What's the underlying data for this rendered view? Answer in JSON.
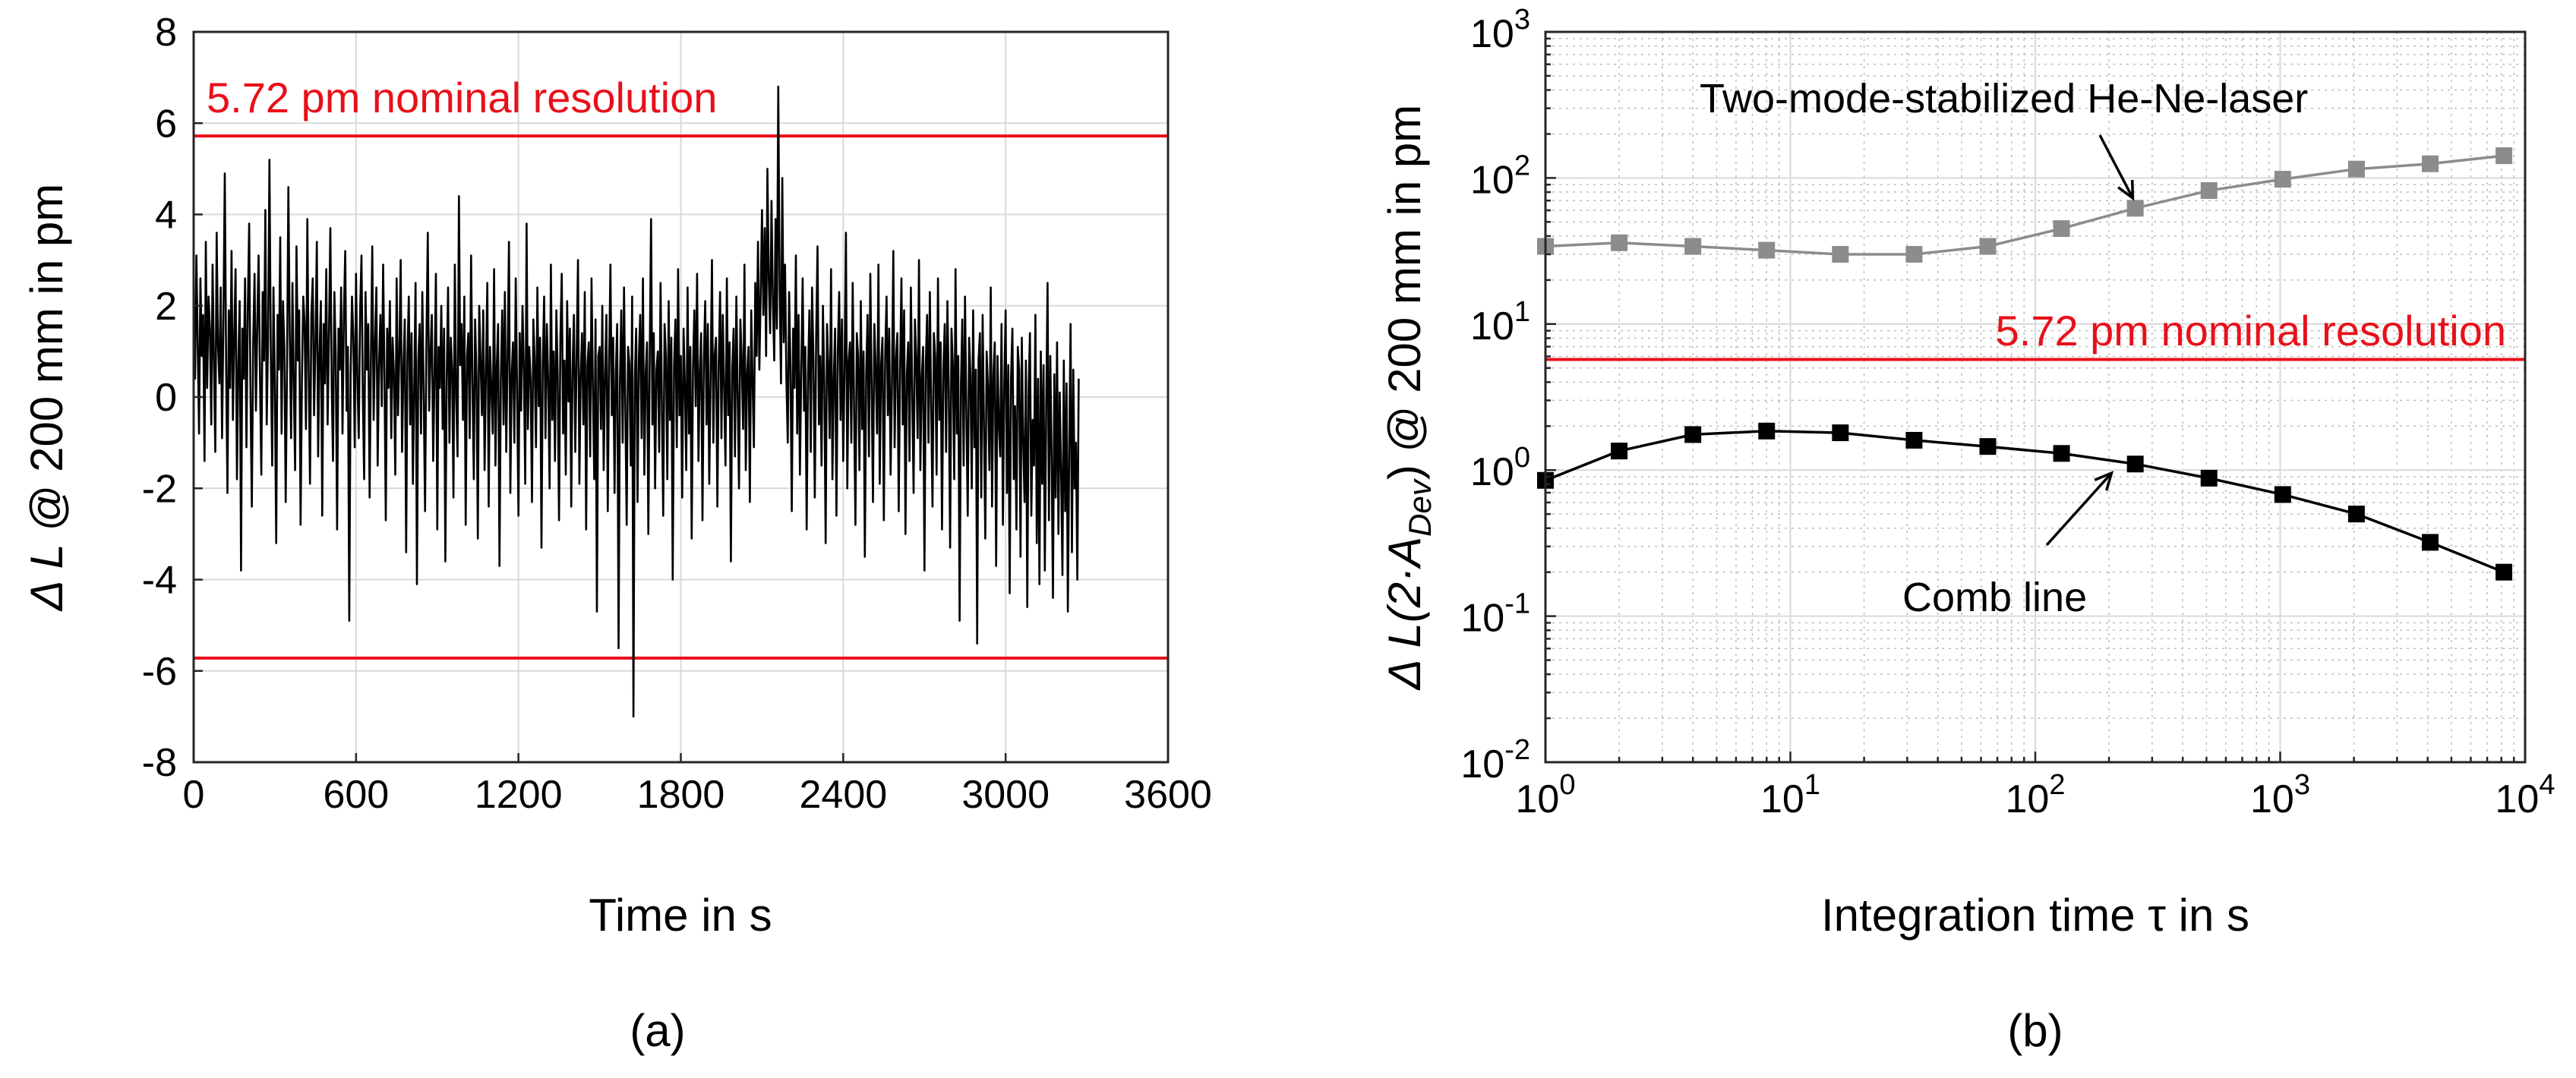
{
  "chart_data": [
    {
      "id": "a",
      "type": "line",
      "panel_label": "(a)",
      "xlabel": "Time in s",
      "ylabel": "Δ L @ 200 mm in pm",
      "xlim": [
        0,
        3600
      ],
      "ylim": [
        -8,
        8
      ],
      "xticks": [
        0,
        600,
        1200,
        1800,
        2400,
        3000,
        3600
      ],
      "xtick_labels": [
        "0",
        "600",
        "1200",
        "1800",
        "2400",
        "3000",
        "3600"
      ],
      "yticks": [
        -8,
        -6,
        -4,
        -2,
        0,
        2,
        4,
        6,
        8
      ],
      "ytick_labels": [
        "-8",
        "-6",
        "-4",
        "-2",
        "0",
        "2",
        "4",
        "6",
        "8"
      ],
      "grid": true,
      "reference_lines": [
        {
          "y": 5.72,
          "color": "#e8101a",
          "label": "5.72 pm nominal resolution"
        },
        {
          "y": -5.72,
          "color": "#e8101a",
          "label": ""
        }
      ],
      "series": [
        {
          "name": "ΔL",
          "color": "#000000",
          "x_step": 5,
          "values": [
            2.1,
            0.4,
            3.1,
            1.2,
            -0.8,
            2.6,
            0.9,
            1.8,
            -1.4,
            3.4,
            0.2,
            2.2,
            1.5,
            -0.6,
            2.9,
            0.8,
            -1.2,
            3.6,
            1.1,
            0.3,
            2.4,
            -0.9,
            1.7,
            4.9,
            0.6,
            -2.1,
            1.9,
            0.2,
            3.2,
            -0.5,
            1.4,
            2.8,
            -1.8,
            0.7,
            2.1,
            -3.8,
            1.5,
            0.4,
            2.6,
            -1.1,
            1.9,
            3.8,
            0.1,
            -2.4,
            1.2,
            2.7,
            -0.3,
            1.6,
            3.1,
            0.5,
            -1.7,
            2.3,
            0.8,
            4.1,
            -0.6,
            1.3,
            5.2,
            0.9,
            -1.5,
            2.4,
            0.3,
            -3.2,
            1.8,
            0.6,
            3.5,
            -0.8,
            2.1,
            1.1,
            -2.3,
            0.7,
            4.6,
            1.4,
            -0.9,
            2.5,
            0.2,
            -1.6,
            3.3,
            0.8,
            1.9,
            -2.8,
            0.4,
            2.2,
            1.6,
            -0.7,
            3.9,
            0.5,
            -1.9,
            1.8,
            2.6,
            -0.4,
            1.2,
            3.4,
            -1.3,
            0.9,
            2.1,
            -2.6,
            1.6,
            0.3,
            2.8,
            -0.6,
            1.4,
            3.7,
            0.2,
            -1.4,
            2.3,
            0.9,
            -2.9,
            1.5,
            0.6,
            2.4,
            -0.8,
            1.8,
            3.2,
            -0.3,
            1.1,
            -4.9,
            0.5,
            2.2,
            1.3,
            -1.1,
            2.7,
            0.4,
            -0.9,
            1.9,
            3.1,
            0.1,
            -1.8,
            2.3,
            0.6,
            1.6,
            -2.2,
            0.8,
            3.3,
            -0.5,
            1.2,
            2.4,
            -1.5,
            0.7,
            1.8,
            -0.2,
            2.9,
            0.4,
            -2.7,
            1.5,
            0.2,
            2.1,
            -0.9,
            1.3,
            0.5,
            -1.7,
            2.6,
            -0.4,
            1.0,
            3.0,
            -1.2,
            0.6,
            1.7,
            -3.4,
            0.9,
            2.2,
            -0.6,
            1.4,
            -1.9,
            0.3,
            2.5,
            -4.1,
            0.8,
            1.6,
            -0.8,
            2.3,
            0.1,
            -2.5,
            1.2,
            3.6,
            -0.3,
            0.9,
            1.8,
            -1.4,
            0.5,
            2.7,
            -2.9,
            1.1,
            0.2,
            2.0,
            -0.7,
            1.5,
            -3.6,
            0.4,
            2.4,
            -1.0,
            1.3,
            0.6,
            -2.2,
            2.9,
            0.0,
            -1.3,
            4.4,
            0.7,
            1.6,
            -0.5,
            2.2,
            -2.8,
            0.9,
            1.4,
            -0.9,
            3.1,
            0.3,
            -1.8,
            1.7,
            0.5,
            -3.1,
            2.0,
            0.8,
            -0.4,
            1.9,
            -1.6,
            0.6,
            2.5,
            -2.4,
            1.1,
            0.2,
            -0.8,
            2.8,
            -1.5,
            0.7,
            1.6,
            -3.7,
            0.4,
            1.9,
            -0.6,
            2.3,
            -1.2,
            0.9,
            3.4,
            -2.1,
            0.5,
            1.2,
            -1.0,
            2.6,
            0.1,
            -2.6,
            1.4,
            -0.3,
            2.0,
            0.6,
            -1.9,
            3.8,
            -0.7,
            1.1,
            0.4,
            -2.3,
            1.7,
            0.8,
            -1.1,
            2.4,
            -0.2,
            1.3,
            -3.3,
            0.7,
            2.2,
            -0.9,
            1.6,
            0.3,
            -2.0,
            2.9,
            -0.5,
            1.0,
            -1.4,
            1.9,
            0.5,
            -2.7,
            1.3,
            2.7,
            -0.8,
            0.8,
            -1.7,
            2.1,
            -0.1,
            1.5,
            -2.4,
            0.6,
            1.8,
            -1.2,
            0.9,
            3.0,
            -1.9,
            0.4,
            1.4,
            -0.6,
            2.3,
            -2.9,
            0.7,
            1.2,
            -1.3,
            2.6,
            0.2,
            -1.8,
            1.7,
            -4.7,
            0.9,
            1.1,
            -0.7,
            2.0,
            -1.6,
            0.5,
            1.8,
            -2.5,
            0.8,
            2.9,
            -0.4,
            1.3,
            -2.1,
            0.6,
            1.6,
            -5.5,
            0.3,
            1.9,
            -1.0,
            2.4,
            -0.2,
            -2.8,
            1.1,
            0.7,
            -1.5,
            2.2,
            -7.0,
            0.4,
            1.5,
            -2.3,
            0.9,
            1.8,
            -0.9,
            2.6,
            -1.7,
            0.5,
            1.2,
            -3.0,
            0.8,
            3.9,
            -0.6,
            1.4,
            -2.0,
            0.6,
            1.0,
            -1.2,
            2.5,
            -0.3,
            -2.6,
            1.6,
            0.9,
            -1.8,
            2.1,
            -0.5,
            1.3,
            -4.0,
            0.7,
            1.7,
            -1.1,
            2.8,
            -0.4,
            0.9,
            -2.2,
            1.5,
            0.3,
            -1.6,
            2.4,
            -0.8,
            1.1,
            -3.1,
            0.6,
            1.9,
            -0.2,
            2.7,
            -1.4,
            0.5,
            1.4,
            -2.7,
            0.8,
            2.1,
            -0.6,
            1.6,
            -1.9,
            0.4,
            3.0,
            -1.0,
            0.9,
            1.3,
            -2.4,
            0.7,
            2.3,
            -0.9,
            1.8,
            0.2,
            -1.5,
            2.6,
            -0.4,
            1.2,
            -3.6,
            0.6,
            1.5,
            -1.3,
            2.2,
            0.1,
            -2.0,
            1.7,
            0.8,
            -0.7,
            2.9,
            -1.6,
            0.5,
            1.1,
            -2.3,
            1.9,
            0.4,
            -1.1,
            2.5,
            0.9,
            3.4,
            0.6,
            2.2,
            4.1,
            1.8,
            3.7,
            0.9,
            5.0,
            2.6,
            1.4,
            4.3,
            2.1,
            0.8,
            3.9,
            1.5,
            6.8,
            2.4,
            0.3,
            4.8,
            1.2,
            2.9,
            0.4,
            -1.0,
            2.3,
            0.7,
            -2.5,
            1.5,
            0.2,
            3.1,
            -0.8,
            1.8,
            -1.7,
            0.6,
            2.6,
            -0.3,
            1.1,
            -2.9,
            0.5,
            1.9,
            -1.2,
            2.4,
            0.8,
            -2.2,
            1.3,
            3.3,
            -0.6,
            0.9,
            -1.5,
            2.0,
            0.3,
            -3.2,
            1.6,
            0.7,
            -0.9,
            2.8,
            -1.8,
            0.4,
            1.5,
            -2.6,
            1.0,
            2.3,
            -0.5,
            1.7,
            -1.4,
            0.6,
            3.6,
            -2.0,
            0.8,
            1.2,
            -1.0,
            2.5,
            -0.2,
            -2.8,
            1.4,
            0.9,
            -1.6,
            2.1,
            -0.7,
            1.0,
            -3.5,
            0.5,
            1.8,
            -1.3,
            2.7,
            0.2,
            -2.3,
            1.6,
            0.6,
            -0.8,
            2.9,
            -1.9,
            0.7,
            1.3,
            -2.7,
            0.9,
            2.2,
            -0.4,
            1.5,
            -1.7,
            0.3,
            3.2,
            -1.1,
            0.8,
            1.4,
            -2.5,
            0.6,
            2.6,
            -0.6,
            1.9,
            -3.0,
            0.5,
            1.2,
            -1.4,
            2.4,
            0.1,
            -2.1,
            1.7,
            0.8,
            -0.9,
            3.0,
            -1.6,
            0.4,
            1.1,
            -3.8,
            0.7,
            1.8,
            -1.0,
            2.3,
            -0.3,
            -2.4,
            1.4,
            0.9,
            -1.7,
            2.6,
            -0.5,
            1.2,
            -2.9,
            0.6,
            1.6,
            -1.2,
            2.1,
            0.2,
            -3.3,
            1.5,
            0.7,
            -1.8,
            2.8,
            -0.8,
            0.9,
            -4.9,
            0.3,
            1.7,
            -1.5,
            2.2,
            -0.4,
            -2.6,
            1.3,
            0.5,
            -2.0,
            1.9,
            -1.1,
            0.6,
            -5.4,
            0.8,
            1.4,
            -2.2,
            1.8,
            -0.7,
            -3.1,
            1.0,
            0.2,
            -1.6,
            2.4,
            -2.4,
            0.5,
            1.2,
            -3.7,
            0.9,
            -0.6,
            -1.3,
            1.6,
            -2.8,
            0.3,
            1.9,
            -2.1,
            0.7,
            -4.3,
            0.4,
            1.5,
            -1.8,
            -0.2,
            -2.9,
            1.1,
            0.6,
            -3.5,
            1.3,
            -1.0,
            -2.3,
            0.8,
            -4.6,
            0.2,
            1.4,
            -2.6,
            -0.5,
            -1.5,
            1.8,
            -3.2,
            0.4,
            -4.1,
            1.0,
            -1.9,
            0.7,
            -3.8,
            -0.3,
            2.5,
            -2.7,
            0.9,
            -1.4,
            -4.4,
            0.5,
            -2.2,
            1.2,
            -3.0,
            0.1,
            -1.6,
            -3.9,
            0.8,
            -2.5,
            0.3,
            -4.7,
            -1.2,
            1.6,
            -3.4,
            0.6,
            -2.0,
            -1.0,
            -4.0,
            0.4
          ]
        }
      ]
    },
    {
      "id": "b",
      "type": "line",
      "xscale": "log",
      "yscale": "log",
      "panel_label": "(b)",
      "xlabel": "Integration time τ in s",
      "ylabel": "Δ L(2·A_Dev) @ 200 mm in pm",
      "ylabel_parts": {
        "pre": "Δ L(2·A",
        "sub": "Dev",
        "post": ") @ 200 mm in pm"
      },
      "xlim": [
        1,
        10000
      ],
      "ylim": [
        0.01,
        1000
      ],
      "x_decades": [
        {
          "base": "10",
          "exp": "0"
        },
        {
          "base": "10",
          "exp": "1"
        },
        {
          "base": "10",
          "exp": "2"
        },
        {
          "base": "10",
          "exp": "3"
        },
        {
          "base": "10",
          "exp": "4"
        }
      ],
      "y_decades": [
        {
          "base": "10",
          "exp": "-2"
        },
        {
          "base": "10",
          "exp": "-1"
        },
        {
          "base": "10",
          "exp": "0"
        },
        {
          "base": "10",
          "exp": "1"
        },
        {
          "base": "10",
          "exp": "2"
        },
        {
          "base": "10",
          "exp": "3"
        }
      ],
      "grid": true,
      "minor_grid": true,
      "reference_lines": [
        {
          "y": 5.72,
          "color": "#e8101a",
          "label": "5.72 pm nominal resolution"
        }
      ],
      "x": [
        1,
        2,
        4,
        8,
        16,
        32,
        64,
        128,
        256,
        512,
        1024,
        2048,
        4096,
        8192
      ],
      "series": [
        {
          "name": "Two-mode-stabilized He-Ne-laser",
          "color": "#8c8c8c",
          "marker": "square",
          "values": [
            34,
            36,
            34,
            32,
            30,
            30,
            34,
            45,
            62,
            82,
            98,
            115,
            125,
            142
          ]
        },
        {
          "name": "Comb line",
          "color": "#000000",
          "marker": "square",
          "values": [
            0.85,
            1.35,
            1.75,
            1.85,
            1.8,
            1.6,
            1.45,
            1.3,
            1.1,
            0.88,
            0.68,
            0.5,
            0.32,
            0.2
          ]
        }
      ],
      "annotations": [
        {
          "text": "Two-mode-stabilized He-Ne-laser",
          "target_x": 220,
          "target_y": 80
        },
        {
          "text": "Comb line",
          "target_x": 220,
          "target_y": 1.05
        }
      ]
    }
  ]
}
